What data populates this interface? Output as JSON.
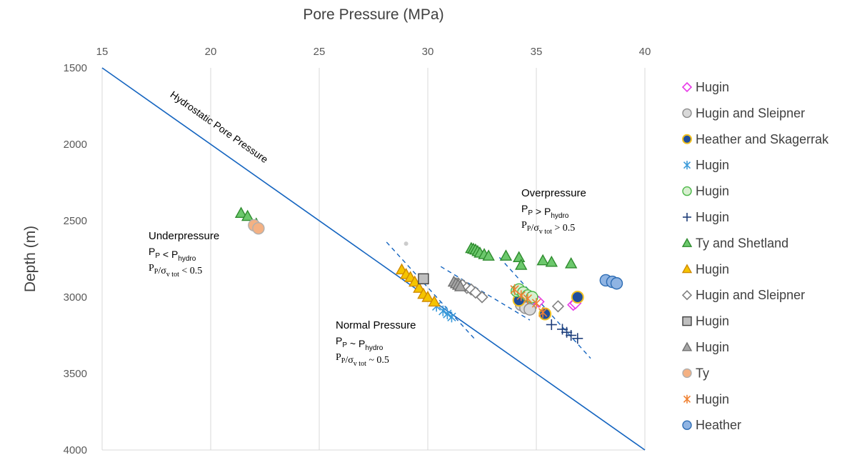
{
  "chart_data": {
    "type": "scatter",
    "title": "",
    "xlabel": "Pore Pressure (MPa)",
    "ylabel": "Depth (m)",
    "xlim": [
      15,
      40
    ],
    "ylim": [
      1500,
      4000
    ],
    "y_inverted": true,
    "x_axis_position": "top",
    "x_ticks": [
      15,
      20,
      25,
      30,
      35,
      40
    ],
    "y_ticks": [
      1500,
      2000,
      2500,
      3000,
      3500,
      4000
    ],
    "grid": "vertical",
    "legend_position": "right",
    "colors": {
      "hydro_line": "#1565c0",
      "gridline": "#d9d9d9",
      "axis_text": "#595959"
    },
    "hydrostatic_line": {
      "label": "Hydrostatic Pore Pressure",
      "x": [
        15,
        40
      ],
      "y": [
        1500,
        4000
      ]
    },
    "trend_lines": [
      {
        "x": [
          28.1,
          32.2
        ],
        "y": [
          2640,
          3280
        ]
      },
      {
        "x": [
          30.6,
          34.7
        ],
        "y": [
          2800,
          3150
        ]
      },
      {
        "x": [
          33.3,
          37.5
        ],
        "y": [
          2740,
          3400
        ]
      }
    ],
    "annotations": {
      "underpressure": {
        "title": "Underpressure",
        "line1": "PP < Phydro",
        "line2": "PP/σv tot < 0.5"
      },
      "normal": {
        "title": "Normal Pressure",
        "line1": "PP ~ Phydro",
        "line2": "PP/σv tot ~ 0.5"
      },
      "overpressure": {
        "title": "Overpressure",
        "line1": "PP > Phydro",
        "line2": "PP/σv tot > 0.5"
      }
    },
    "stray_point": {
      "x": 29.0,
      "y": 2650,
      "color": "#cccccc"
    },
    "series": [
      {
        "name": "Hugin",
        "marker": "diamond",
        "fill": "#ffffff",
        "stroke": "#e83be8",
        "points": [
          [
            34.9,
            3010
          ],
          [
            35.1,
            3030
          ],
          [
            36.7,
            3050
          ],
          [
            36.8,
            3040
          ]
        ]
      },
      {
        "name": "Hugin and Sleipner",
        "marker": "circle",
        "fill": "#d9d9d9",
        "stroke": "#8c8c8c",
        "points": [
          [
            34.3,
            3050
          ],
          [
            34.5,
            3070
          ],
          [
            34.7,
            3080
          ]
        ]
      },
      {
        "name": "Heather and Skagerrak",
        "marker": "circle-dot",
        "fill": "#1f4e9c",
        "stroke": "#f0c020",
        "points": [
          [
            34.2,
            3020
          ],
          [
            36.9,
            3000
          ],
          [
            35.4,
            3110
          ]
        ]
      },
      {
        "name": "Hugin",
        "marker": "asterisk",
        "fill": "none",
        "stroke": "#3a9ad9",
        "points": [
          [
            30.4,
            3060
          ],
          [
            30.7,
            3090
          ],
          [
            30.9,
            3110
          ],
          [
            31.1,
            3130
          ]
        ]
      },
      {
        "name": "Hugin",
        "marker": "circle",
        "fill": "#d8efd0",
        "stroke": "#4cb848",
        "points": [
          [
            34.1,
            2960
          ],
          [
            34.2,
            2950
          ],
          [
            34.4,
            2970
          ],
          [
            34.6,
            2990
          ],
          [
            34.8,
            3000
          ]
        ]
      },
      {
        "name": "Hugin",
        "marker": "plus",
        "fill": "none",
        "stroke": "#1f3e7a",
        "points": [
          [
            35.7,
            3180
          ],
          [
            36.2,
            3210
          ],
          [
            36.4,
            3230
          ],
          [
            36.6,
            3250
          ],
          [
            36.9,
            3270
          ]
        ]
      },
      {
        "name": "Ty and Shetland",
        "marker": "triangle",
        "fill": "#6cc86c",
        "stroke": "#2e8b2e",
        "points": [
          [
            21.4,
            2450
          ],
          [
            21.7,
            2470
          ],
          [
            22.1,
            2520
          ],
          [
            32.0,
            2680
          ],
          [
            32.1,
            2685
          ],
          [
            32.2,
            2690
          ],
          [
            32.3,
            2700
          ],
          [
            32.4,
            2710
          ],
          [
            32.6,
            2720
          ],
          [
            32.8,
            2730
          ],
          [
            33.6,
            2730
          ],
          [
            34.2,
            2740
          ],
          [
            34.3,
            2790
          ],
          [
            35.3,
            2760
          ],
          [
            35.7,
            2770
          ],
          [
            36.6,
            2780
          ]
        ]
      },
      {
        "name": "Hugin",
        "marker": "triangle",
        "fill": "#f5c400",
        "stroke": "#d08a00",
        "points": [
          [
            28.8,
            2820
          ],
          [
            29.0,
            2850
          ],
          [
            29.2,
            2870
          ],
          [
            29.4,
            2900
          ],
          [
            29.6,
            2940
          ],
          [
            29.8,
            2980
          ],
          [
            30.0,
            3000
          ],
          [
            30.3,
            3030
          ]
        ]
      },
      {
        "name": "Hugin and Sleipner",
        "marker": "diamond",
        "fill": "#ffffff",
        "stroke": "#808080",
        "points": [
          [
            31.4,
            2910
          ],
          [
            31.6,
            2920
          ],
          [
            31.8,
            2940
          ],
          [
            32.0,
            2950
          ],
          [
            32.2,
            2970
          ],
          [
            32.5,
            3000
          ],
          [
            36.0,
            3060
          ]
        ]
      },
      {
        "name": "Hugin",
        "marker": "square",
        "fill": "#bfbfbf",
        "stroke": "#404040",
        "points": [
          [
            29.8,
            2880
          ]
        ]
      },
      {
        "name": "Hugin",
        "marker": "triangle",
        "fill": "#a6a6a6",
        "stroke": "#707070",
        "points": [
          [
            31.2,
            2900
          ],
          [
            31.3,
            2910
          ],
          [
            31.4,
            2920
          ],
          [
            31.5,
            2930
          ]
        ]
      },
      {
        "name": "Ty",
        "marker": "circle",
        "fill": "#f4b183",
        "stroke": "#b0b0b0",
        "points": [
          [
            22.0,
            2530
          ],
          [
            22.2,
            2550
          ]
        ]
      },
      {
        "name": "Hugin",
        "marker": "x-star",
        "fill": "none",
        "stroke": "#f08030",
        "points": [
          [
            34.0,
            2950
          ],
          [
            34.3,
            2990
          ],
          [
            34.6,
            3010
          ],
          [
            35.0,
            3040
          ],
          [
            35.3,
            3100
          ]
        ]
      },
      {
        "name": "Heather",
        "marker": "circle",
        "fill": "#8fb4e3",
        "stroke": "#2e6db4",
        "points": [
          [
            38.2,
            2890
          ],
          [
            38.5,
            2900
          ],
          [
            38.7,
            2910
          ]
        ]
      }
    ]
  }
}
